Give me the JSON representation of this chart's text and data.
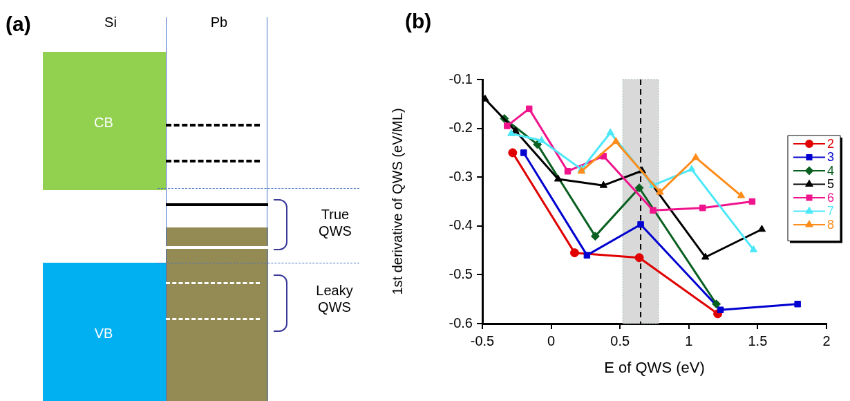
{
  "chart_data": [
    {
      "type": "other",
      "title": "(a)",
      "annotations": [
        "Si",
        "Pb",
        "CB",
        "VB",
        "True QWS",
        "Leaky QWS"
      ]
    },
    {
      "type": "line",
      "title": "(b)",
      "xlabel": "E of QWS (eV)",
      "ylabel": "1st derivative of QWS (eV/ML)",
      "xlim": [
        -0.5,
        2
      ],
      "xticks": [
        -0.5,
        0,
        0.5,
        1,
        1.5,
        2
      ],
      "ylim": [
        -0.6,
        -0.1
      ],
      "yticks": [
        -0.6,
        -0.5,
        -0.4,
        -0.3,
        -0.2,
        -0.1
      ],
      "legend": "right",
      "line_style": "solid",
      "ref_lines": [
        {
          "axis": "x",
          "value": 0.65,
          "color": "#000000",
          "line_style": "dashed"
        }
      ],
      "bands": [
        {
          "axis": "x",
          "from": 0.52,
          "to": 0.78,
          "color": "#d9d9d9"
        }
      ],
      "series": [
        {
          "name": "2",
          "color": "#e00000",
          "marker": "circle",
          "x": [
            -0.28,
            0.17,
            0.64,
            1.21
          ],
          "values": [
            -0.25,
            -0.455,
            -0.465,
            -0.58
          ]
        },
        {
          "name": "3",
          "color": "#0000d0",
          "marker": "square",
          "x": [
            -0.2,
            0.26,
            0.65,
            1.23,
            1.79
          ],
          "values": [
            -0.25,
            -0.46,
            -0.397,
            -0.572,
            -0.56
          ]
        },
        {
          "name": "4",
          "color": "#0a6020",
          "marker": "diamond",
          "x": [
            -0.34,
            -0.1,
            0.32,
            0.64,
            1.2
          ],
          "values": [
            -0.18,
            -0.233,
            -0.421,
            -0.322,
            -0.56
          ]
        },
        {
          "name": "5",
          "color": "#000000",
          "marker": "triangle",
          "x": [
            -0.48,
            -0.26,
            0.05,
            0.38,
            0.66,
            1.12,
            1.53
          ],
          "values": [
            -0.14,
            -0.205,
            -0.304,
            -0.317,
            -0.287,
            -0.464,
            -0.407
          ]
        },
        {
          "name": "6",
          "color": "#f0148c",
          "marker": "square",
          "x": [
            -0.32,
            -0.16,
            0.12,
            0.38,
            0.74,
            1.1,
            1.46
          ],
          "values": [
            -0.195,
            -0.16,
            -0.288,
            -0.257,
            -0.368,
            -0.363,
            -0.35
          ]
        },
        {
          "name": "7",
          "color": "#4de8f8",
          "marker": "triangle",
          "x": [
            -0.29,
            -0.07,
            0.22,
            0.43,
            0.74,
            1.02,
            1.47
          ],
          "values": [
            -0.211,
            -0.225,
            -0.284,
            -0.209,
            -0.317,
            -0.284,
            -0.449
          ]
        },
        {
          "name": "8",
          "color": "#ff8c1a",
          "marker": "triangle",
          "x": [
            0.22,
            0.47,
            0.79,
            1.05,
            1.38
          ],
          "values": [
            -0.288,
            -0.227,
            -0.331,
            -0.26,
            -0.338
          ]
        }
      ]
    }
  ]
}
